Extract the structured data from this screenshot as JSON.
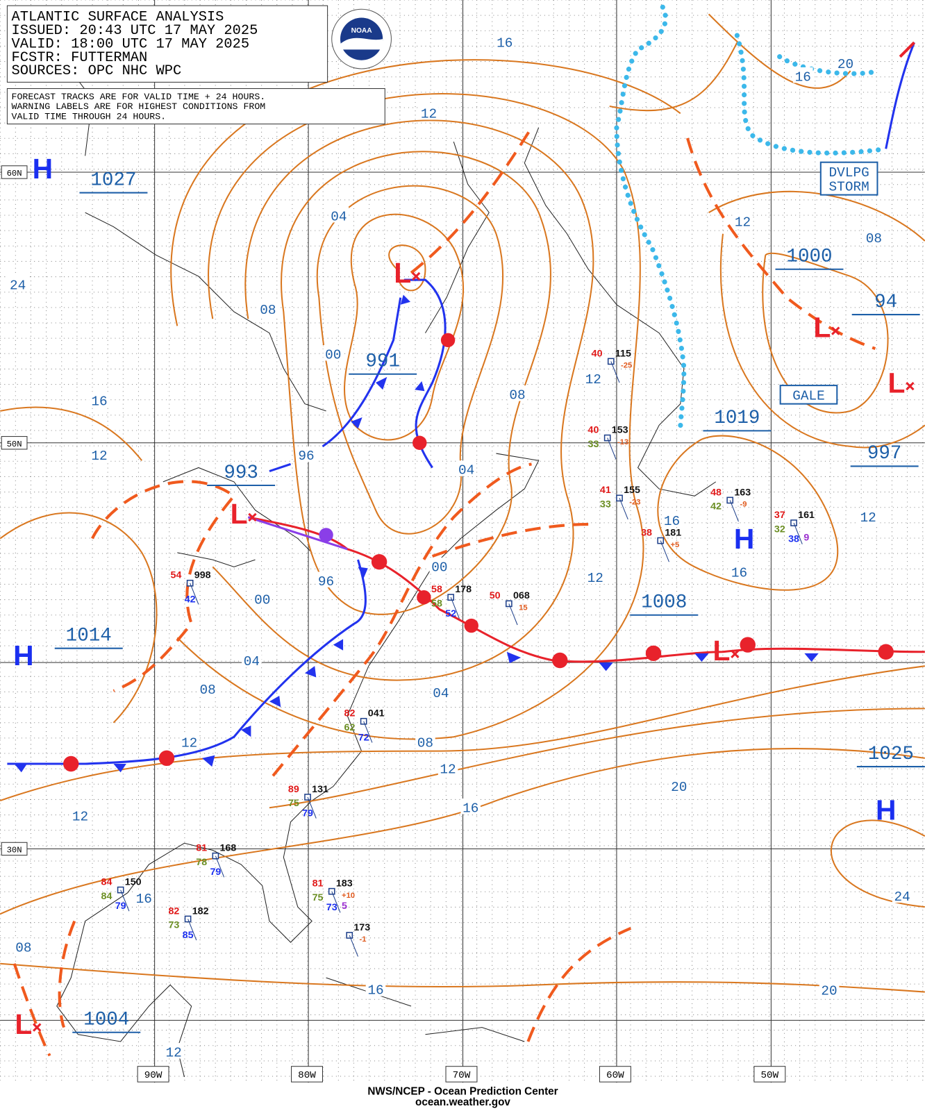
{
  "header": {
    "lines": [
      "ATLANTIC SURFACE ANALYSIS",
      "ISSUED: 20:43 UTC 17 MAY 2025",
      "VALID:  18:00 UTC 17 MAY 2025",
      "FCSTR:  FUTTERMAN",
      "SOURCES: OPC NHC WPC"
    ],
    "logo": "NOAA"
  },
  "note": {
    "lines": [
      "FORECAST TRACKS ARE FOR VALID TIME + 24 HOURS.",
      "WARNING LABELS ARE FOR HIGHEST CONDITIONS FROM",
      "VALID TIME THROUGH 24 HOURS."
    ]
  },
  "lat_labels": [
    "60N",
    "50N",
    "30N"
  ],
  "lon_labels": [
    "90W",
    "80W",
    "70W",
    "60W",
    "50W"
  ],
  "centers": [
    "H",
    "L",
    "L",
    "H",
    "L",
    "H",
    "L",
    "L",
    "H",
    "L"
  ],
  "pressure_labels": [
    "1027",
    "991",
    "993",
    "1014",
    "1004",
    "1008",
    "1019",
    "1000",
    "94",
    "997",
    "1025"
  ],
  "isobar_labels": [
    "16",
    "12",
    "04",
    "08",
    "00",
    "24",
    "16",
    "12",
    "96",
    "04",
    "08",
    "12",
    "00",
    "96",
    "00",
    "12",
    "16",
    "16",
    "12",
    "12",
    "08",
    "16",
    "20",
    "04",
    "08",
    "12",
    "04",
    "08",
    "12",
    "16",
    "20",
    "12",
    "16",
    "08",
    "16",
    "20",
    "24",
    "12"
  ],
  "warnings": [
    {
      "lines": [
        "DVLPG",
        "STORM"
      ]
    },
    {
      "lines": [
        "GALE"
      ]
    }
  ],
  "stations": [
    {
      "temp": "40",
      "pressure": "115",
      "tendency": "-25"
    },
    {
      "temp": "40",
      "pressure": "153",
      "dewpoint": "33",
      "tendency": "-13"
    },
    {
      "temp": "41",
      "pressure": "155",
      "dewpoint": "33",
      "tendency": "-23"
    },
    {
      "temp": "38",
      "pressure": "181",
      "tendency": "+5"
    },
    {
      "temp": "48",
      "pressure": "163",
      "dewpoint": "42",
      "tendency": "-9"
    },
    {
      "temp": "37",
      "pressure": "161",
      "dewpoint": "32",
      "sst": "38",
      "wave": "9"
    },
    {
      "temp": "54",
      "pressure": "998",
      "sst": "42"
    },
    {
      "temp": "58",
      "pressure": "178",
      "dewpoint": "58",
      "sst": "52"
    },
    {
      "temp": "50",
      "pressure": "068",
      "tendency": "15"
    },
    {
      "temp": "82",
      "pressure": "041",
      "dewpoint": "62",
      "sst": "72"
    },
    {
      "temp": "89",
      "pressure": "131",
      "dewpoint": "75",
      "sst": "79"
    },
    {
      "temp": "81",
      "pressure": "168",
      "dewpoint": "78",
      "sst": "79"
    },
    {
      "temp": "84",
      "pressure": "150",
      "dewpoint": "84",
      "sst": "79"
    },
    {
      "temp": "82",
      "pressure": "182",
      "dewpoint": "73",
      "sst": "85"
    },
    {
      "temp": "81",
      "pressure": "183",
      "dewpoint": "75",
      "tendency": "+10",
      "sst": "73",
      "wave": "5"
    },
    {
      "pressure": "173",
      "tendency": "-1"
    }
  ],
  "footer": {
    "lines": [
      "NWS/NCEP - Ocean Prediction Center",
      "ocean.weather.gov"
    ]
  }
}
